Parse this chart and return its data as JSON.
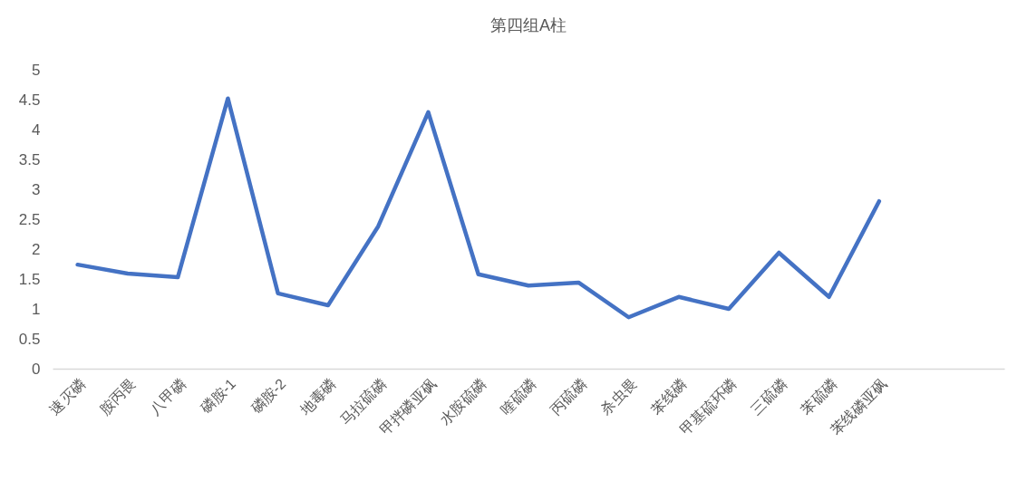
{
  "chart_data": {
    "type": "line",
    "title": "第四组A柱",
    "categories": [
      "速灭磷",
      "胺丙畏",
      "八甲磷",
      "磷胺-1",
      "磷胺-2",
      "地毒磷",
      "马拉硫磷",
      "甲拌磷亚砜",
      "水胺硫磷",
      "喹硫磷",
      "丙硫磷",
      "杀虫畏",
      "苯线磷",
      "甲基硫环磷",
      "三硫磷",
      "苯硫磷",
      "苯线磷亚砜",
      null,
      null
    ],
    "series": [
      {
        "color": "#4472c4",
        "values": [
          1.74,
          1.59,
          1.53,
          4.52,
          1.26,
          1.06,
          2.38,
          4.29,
          1.58,
          1.39,
          1.44,
          0.86,
          1.2,
          1.0,
          1.94,
          1.2,
          2.8,
          null,
          null
        ]
      }
    ],
    "ylim": [
      0,
      5
    ],
    "yticks": [
      0,
      0.5,
      1,
      1.5,
      2,
      2.5,
      3,
      3.5,
      4,
      4.5,
      5
    ],
    "grid": false,
    "marker": "none",
    "line_style": "solid"
  }
}
